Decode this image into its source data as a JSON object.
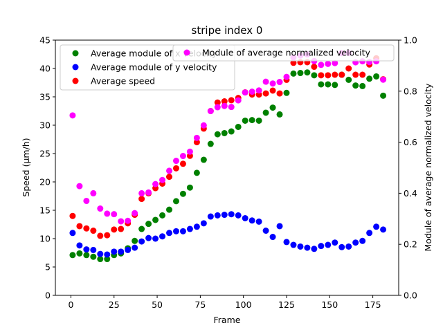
{
  "chart_data": {
    "type": "scatter",
    "title": "stripe index 0",
    "xlabel": "Frame",
    "ylabel": "Speed (μm/h)",
    "y2label": "Module of average normalized velocity",
    "xlim": [
      -9,
      190
    ],
    "ylim": [
      0,
      45
    ],
    "y2lim": [
      0.0,
      1.0
    ],
    "x_ticks": [
      "0",
      "25",
      "50",
      "75",
      "100",
      "125",
      "150",
      "175"
    ],
    "y_ticks": [
      "0",
      "5",
      "10",
      "15",
      "20",
      "25",
      "30",
      "35",
      "40",
      "45"
    ],
    "y2_ticks": [
      "0.0",
      "0.2",
      "0.4",
      "0.6",
      "0.8",
      "1.0"
    ],
    "legend_left_placement": "upper-left",
    "legend_right_placement": "upper-right",
    "x": [
      1,
      5,
      9,
      13,
      17,
      21,
      25,
      29,
      33,
      37,
      41,
      45,
      49,
      53,
      57,
      61,
      65,
      69,
      73,
      77,
      81,
      85,
      89,
      93,
      97,
      101,
      105,
      109,
      113,
      117,
      121,
      125,
      129,
      133,
      137,
      141,
      145,
      149,
      153,
      157,
      161,
      165,
      169,
      173,
      177,
      181
    ],
    "series": [
      {
        "name": "Average module of x velocity",
        "axis": "left",
        "color": "#008000",
        "values": [
          7.1,
          7.4,
          7.1,
          6.8,
          6.4,
          6.4,
          7.1,
          7.4,
          8.3,
          9.6,
          11.7,
          12.6,
          13.3,
          14.1,
          15.1,
          16.6,
          17.9,
          19.0,
          21.6,
          23.9,
          26.7,
          28.4,
          28.6,
          28.9,
          29.7,
          30.8,
          30.9,
          30.8,
          32.2,
          33.1,
          31.9,
          35.7,
          39.1,
          39.2,
          39.3,
          38.8,
          37.2,
          37.2,
          37.1,
          38.9,
          38.0,
          37.0,
          36.9,
          38.2,
          38.6,
          35.2
        ]
      },
      {
        "name": "Average module of y velocity",
        "axis": "left",
        "color": "#0000ff",
        "values": [
          11.0,
          8.8,
          8.1,
          8.0,
          7.3,
          7.2,
          7.7,
          7.7,
          8.0,
          8.4,
          9.5,
          10.1,
          10.0,
          10.4,
          11.0,
          11.3,
          11.3,
          11.7,
          12.1,
          12.7,
          13.9,
          14.1,
          14.2,
          14.3,
          14.1,
          13.6,
          13.2,
          13.0,
          11.4,
          10.3,
          12.2,
          9.4,
          8.9,
          8.6,
          8.4,
          8.2,
          8.7,
          8.9,
          9.3,
          8.5,
          8.6,
          9.3,
          9.6,
          11.0,
          12.1,
          11.6
        ]
      },
      {
        "name": "Average speed",
        "axis": "left",
        "color": "#ff0000",
        "values": [
          14.0,
          12.2,
          11.8,
          11.4,
          10.5,
          10.6,
          11.6,
          11.7,
          12.7,
          14.2,
          17.0,
          18.0,
          18.9,
          19.7,
          20.9,
          22.4,
          23.2,
          24.6,
          27.0,
          29.4,
          32.5,
          34.0,
          34.2,
          34.4,
          34.8,
          35.8,
          35.4,
          35.4,
          35.6,
          36.1,
          35.6,
          38.0,
          41.0,
          41.1,
          41.1,
          40.3,
          38.8,
          38.8,
          38.9,
          38.9,
          40.0,
          38.9,
          38.9,
          40.7,
          41.8,
          38.1
        ]
      },
      {
        "name": "Module of average normalized velocity",
        "axis": "right",
        "color": "#ff00ff",
        "values": [
          0.705,
          0.428,
          0.37,
          0.4,
          0.34,
          0.32,
          0.318,
          0.29,
          0.292,
          0.322,
          0.4,
          0.403,
          0.436,
          0.452,
          0.488,
          0.527,
          0.546,
          0.563,
          0.617,
          0.666,
          0.722,
          0.737,
          0.742,
          0.738,
          0.764,
          0.795,
          0.798,
          0.803,
          0.837,
          0.83,
          0.836,
          0.856,
          0.932,
          0.94,
          0.944,
          0.918,
          0.903,
          0.907,
          0.91,
          0.949,
          0.95,
          0.913,
          0.917,
          0.914,
          0.917,
          0.845
        ]
      }
    ]
  }
}
